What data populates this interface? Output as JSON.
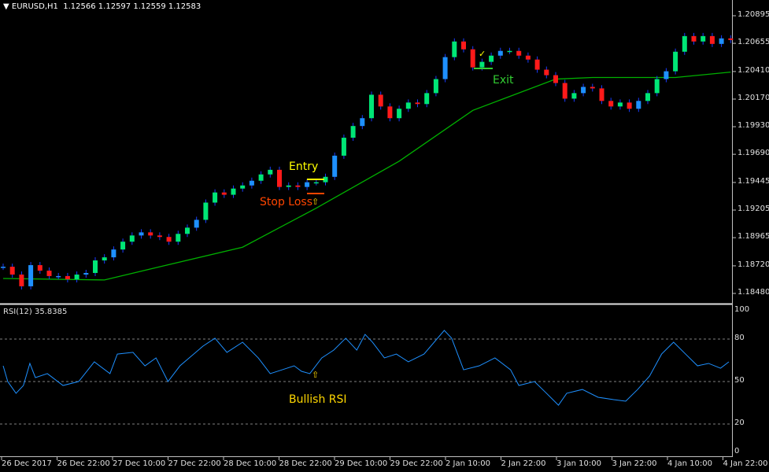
{
  "header": {
    "symbol_label": "EURUSD,H1",
    "ohlc_text": "1.12566 1.12597 1.12559 1.12583"
  },
  "colors": {
    "bull": "#00e676",
    "bull_alt": "#1e90ff",
    "bear": "#ff1a1a",
    "wick": "#1a3cff",
    "ma": "#00b000",
    "rsi": "#1e90ff",
    "grid": "#808080",
    "entry": "#ffff00",
    "stop": "#ff4500",
    "exit": "#32cd32"
  },
  "chart_data": [
    {
      "type": "candlestick",
      "title": "EURUSD,H1",
      "y_ticks": [
        "1.20895",
        "1.20655",
        "1.20410",
        "1.20170",
        "1.19930",
        "1.19690",
        "1.19445",
        "1.19205",
        "1.18965",
        "1.18720",
        "1.18480"
      ],
      "ylim": [
        1.1848,
        1.20895
      ],
      "x_ticks": [
        "26 Dec 2017",
        "26 Dec 22:00",
        "27 Dec 10:00",
        "27 Dec 22:00",
        "28 Dec 10:00",
        "28 Dec 22:00",
        "29 Dec 10:00",
        "29 Dec 22:00",
        "2 Jan 10:00",
        "2 Jan 22:00",
        "3 Jan 10:00",
        "3 Jan 22:00",
        "4 Jan 10:00",
        "4 Jan 22:00"
      ],
      "closes": [
        1.18712,
        1.18644,
        1.18542,
        1.18726,
        1.18678,
        1.18631,
        1.18631,
        1.18603,
        1.18644,
        1.18658,
        1.18767,
        1.18794,
        1.18862,
        1.1893,
        1.18984,
        1.19011,
        1.18984,
        1.18971,
        1.1893,
        1.18998,
        1.19052,
        1.1912,
        1.1927,
        1.19358,
        1.19338,
        1.19392,
        1.19419,
        1.1946,
        1.19515,
        1.19555,
        1.19406,
        1.19419,
        1.19406,
        1.19447,
        1.19447,
        1.19494,
        1.19678,
        1.19834,
        1.19936,
        1.20004,
        1.20208,
        1.20106,
        1.20004,
        1.20086,
        1.2014,
        1.20127,
        1.20222,
        1.20344,
        1.20535,
        1.20671,
        1.20603,
        1.20446,
        1.20494,
        1.20548,
        1.20589,
        1.20589,
        1.20548,
        1.20514,
        1.20426,
        1.20378,
        1.2031,
        1.20174,
        1.20222,
        1.20276,
        1.20263,
        1.20154,
        1.20106,
        1.2014,
        1.20086,
        1.20154,
        1.20222,
        1.20344,
        1.20412,
        1.20582,
        1.20718,
        1.20671,
        1.20718,
        1.2065,
        1.20698,
        1.20684
      ],
      "moving_average": [
        [
          0,
          1.1861
        ],
        [
          11,
          1.18597
        ],
        [
          17,
          1.18712
        ],
        [
          26,
          1.18882
        ],
        [
          34,
          1.19222
        ],
        [
          43,
          1.1963
        ],
        [
          51,
          1.20072
        ],
        [
          60,
          1.20344
        ],
        [
          64,
          1.20358
        ],
        [
          73,
          1.20358
        ],
        [
          79,
          1.20405
        ]
      ],
      "annotations": {
        "entry": "Entry",
        "stop_loss": "Stop Loss",
        "exit": "Exit",
        "arrow": "⇧",
        "check": "✓"
      }
    },
    {
      "type": "line",
      "title": "RSI(12) 35.8385",
      "ylim": [
        0,
        100
      ],
      "y_ticks": [
        "100",
        "80",
        "50",
        "20",
        "0"
      ],
      "levels": [
        80,
        50,
        20
      ],
      "values": [
        [
          0,
          61.1
        ],
        [
          0.5,
          50
        ],
        [
          1.4,
          41.7
        ],
        [
          2.2,
          47.2
        ],
        [
          2.9,
          62.8
        ],
        [
          3.5,
          52.8
        ],
        [
          4.8,
          55.6
        ],
        [
          6.5,
          47.2
        ],
        [
          8.2,
          50
        ],
        [
          9.9,
          63.9
        ],
        [
          11.6,
          55.6
        ],
        [
          12.4,
          69.4
        ],
        [
          14.1,
          70.6
        ],
        [
          15.4,
          61.1
        ],
        [
          16.6,
          66.7
        ],
        [
          17.9,
          50
        ],
        [
          19.2,
          61.1
        ],
        [
          21.7,
          75
        ],
        [
          23,
          80.6
        ],
        [
          24.3,
          70.6
        ],
        [
          26,
          77.8
        ],
        [
          27.7,
          66.7
        ],
        [
          29,
          55.6
        ],
        [
          30.3,
          58.3
        ],
        [
          31.6,
          61.1
        ],
        [
          32.4,
          57.2
        ],
        [
          33.3,
          55.6
        ],
        [
          34.6,
          66.7
        ],
        [
          35.9,
          72.2
        ],
        [
          37.2,
          80.6
        ],
        [
          38.4,
          72.2
        ],
        [
          39.3,
          83.3
        ],
        [
          40.1,
          77.8
        ],
        [
          41.4,
          66.7
        ],
        [
          42.7,
          69.4
        ],
        [
          44,
          63.9
        ],
        [
          45.7,
          69.4
        ],
        [
          47.9,
          86.1
        ],
        [
          48.7,
          80.6
        ],
        [
          50,
          58.3
        ],
        [
          51.7,
          61.1
        ],
        [
          53.4,
          66.7
        ],
        [
          55.1,
          58.3
        ],
        [
          56,
          47.2
        ],
        [
          57.7,
          50
        ],
        [
          59,
          41.7
        ],
        [
          60.3,
          33.3
        ],
        [
          61.2,
          41.7
        ],
        [
          62.9,
          44.4
        ],
        [
          64.6,
          38.9
        ],
        [
          66.3,
          37.2
        ],
        [
          67.6,
          36.1
        ],
        [
          68.9,
          44.4
        ],
        [
          70.2,
          53.9
        ],
        [
          71.5,
          69.4
        ],
        [
          72.8,
          77.8
        ],
        [
          74.1,
          69.4
        ],
        [
          75.4,
          61.1
        ],
        [
          76.6,
          62.8
        ],
        [
          77.9,
          59.4
        ],
        [
          78.8,
          63.9
        ]
      ],
      "annotations": {
        "arrow": "⇧",
        "label": "Bullish RSI"
      }
    }
  ]
}
